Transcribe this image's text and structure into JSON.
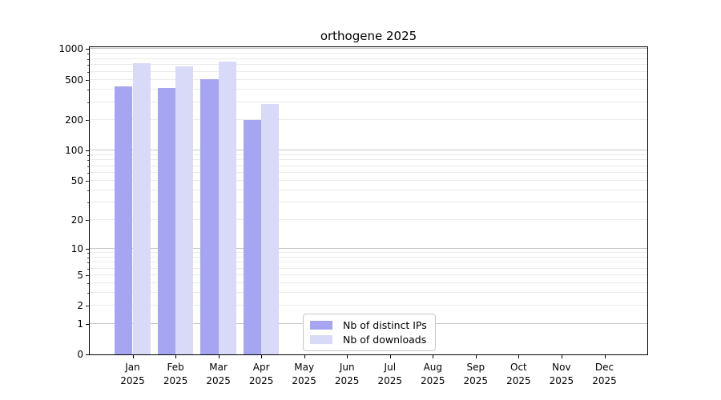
{
  "title": "orthogene 2025",
  "chart_data": {
    "type": "bar",
    "title": "orthogene 2025",
    "categories": [
      "Jan",
      "Feb",
      "Mar",
      "Apr",
      "May",
      "Jun",
      "Jul",
      "Aug",
      "Sep",
      "Oct",
      "Nov",
      "Dec"
    ],
    "year_label": "2025",
    "series": [
      {
        "name": "Nb of distinct IPs",
        "color": "#a5a5f1",
        "values": [
          430,
          412,
          508,
          200,
          null,
          null,
          null,
          null,
          null,
          null,
          null,
          null
        ]
      },
      {
        "name": "Nb of downloads",
        "color": "#d9d9f8",
        "values": [
          722,
          680,
          760,
          290,
          null,
          null,
          null,
          null,
          null,
          null,
          null,
          null
        ]
      }
    ],
    "yticks": [
      0,
      1,
      2,
      5,
      10,
      20,
      50,
      100,
      200,
      500,
      1000
    ],
    "ylim": [
      0,
      1080
    ],
    "yscale": "log1p",
    "xlabel": "",
    "ylabel": "",
    "grid": "horizontal",
    "legend_position": "bottom-center-inside"
  },
  "colors": {
    "major_grid": "#c6c6c6",
    "minor_grid": "#eaeaea",
    "spine": "#000000"
  }
}
